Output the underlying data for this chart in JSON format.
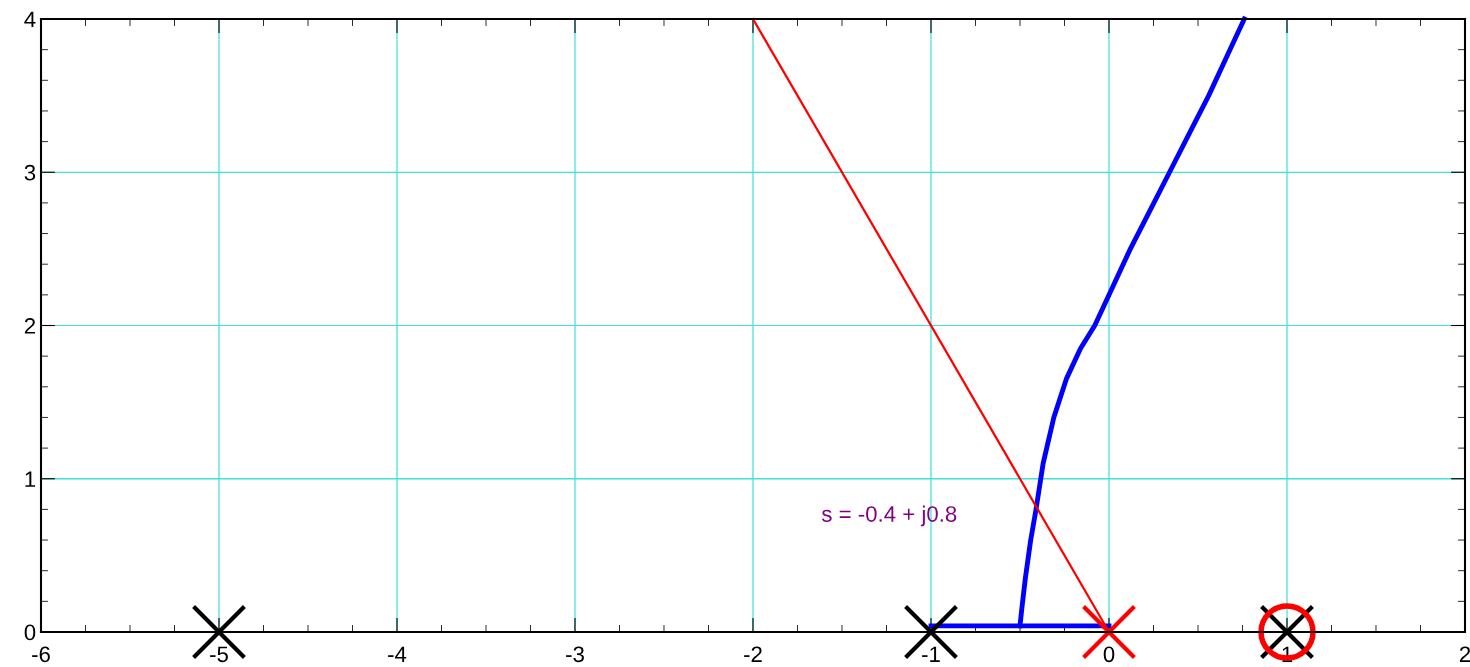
{
  "chart_data": {
    "type": "line",
    "xlim": [
      -6,
      2
    ],
    "ylim": [
      0,
      4
    ],
    "xticks": [
      -6,
      -5,
      -4,
      -3,
      -2,
      -1,
      0,
      1,
      2
    ],
    "yticks": [
      0,
      1,
      2,
      3,
      4
    ],
    "grid": true,
    "series": [
      {
        "color": "#0000ff",
        "x": [
          -1,
          0
        ],
        "values": [
          0.04,
          0.04
        ]
      },
      {
        "color": "#0000ff",
        "x": [
          -0.5,
          -0.49,
          -0.47,
          -0.44,
          -0.41,
          -0.37,
          -0.31,
          -0.24,
          -0.16,
          -0.08,
          0.02,
          0.12,
          0.23,
          0.34,
          0.45,
          0.56,
          0.66,
          0.76
        ],
        "values": [
          0.04,
          0.15,
          0.35,
          0.6,
          0.8,
          1.1,
          1.4,
          1.65,
          1.85,
          2.0,
          2.25,
          2.5,
          2.75,
          3.0,
          3.25,
          3.5,
          3.75,
          4.0
        ]
      },
      {
        "color": "#ff0000",
        "x": [
          0,
          -2
        ],
        "values": [
          0,
          4
        ]
      },
      {
        "type": "scatter",
        "marker": "cross",
        "color": "#000000",
        "x": [
          -5,
          -1,
          1
        ],
        "values": [
          0,
          0,
          0
        ]
      },
      {
        "type": "scatter",
        "marker": "cross",
        "color": "#ff0000",
        "x": [
          0
        ],
        "values": [
          0
        ]
      },
      {
        "type": "scatter",
        "marker": "circle",
        "color": "#ff0000",
        "x": [
          1
        ],
        "values": [
          0
        ]
      }
    ],
    "annotations": [
      "s = -0.4 + j0.8"
    ]
  }
}
